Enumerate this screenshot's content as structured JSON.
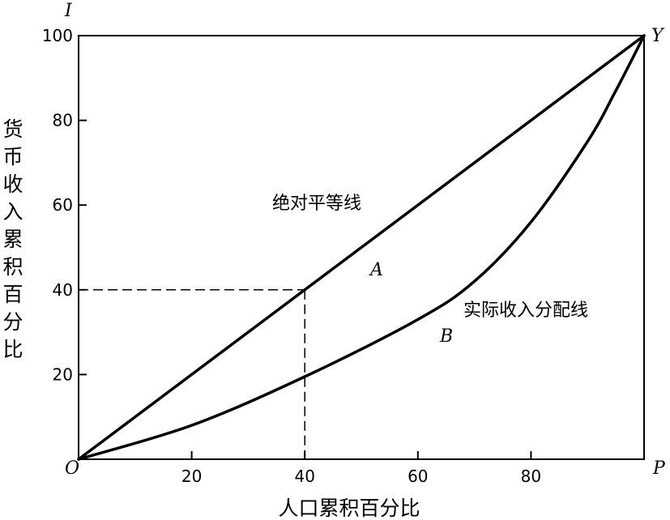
{
  "chart_data": {
    "type": "line",
    "title": "",
    "xlabel": "人口累积百分比",
    "ylabel": "货币收入累积百分比",
    "xlim": [
      0,
      100
    ],
    "ylim": [
      0,
      100
    ],
    "x_ticks": [
      20,
      40,
      60,
      80
    ],
    "y_ticks": [
      20,
      40,
      60,
      80,
      100
    ],
    "grid": false,
    "corner_labels": {
      "origin": "O",
      "top_left": "I",
      "top_right": "Y",
      "bottom_right": "P"
    },
    "series": [
      {
        "name": "绝对平等线",
        "x": [
          0,
          100
        ],
        "y": [
          0,
          100
        ]
      },
      {
        "name": "实际收入分配线",
        "x": [
          0,
          20,
          40,
          60,
          70,
          80,
          90,
          95,
          100
        ],
        "y": [
          0,
          8,
          19.5,
          33,
          42,
          56,
          75,
          87,
          100
        ]
      }
    ],
    "reference_point": {
      "x": 40,
      "y": 40
    },
    "annotations": [
      {
        "text": "A",
        "x": 52.5,
        "y": 44.5
      },
      {
        "text": "B",
        "x": 64,
        "y": 28
      },
      {
        "text": "绝对平等线",
        "x": 47,
        "y": 61
      },
      {
        "text": "实际收入分配线",
        "x": 83,
        "y": 33.5
      }
    ]
  }
}
